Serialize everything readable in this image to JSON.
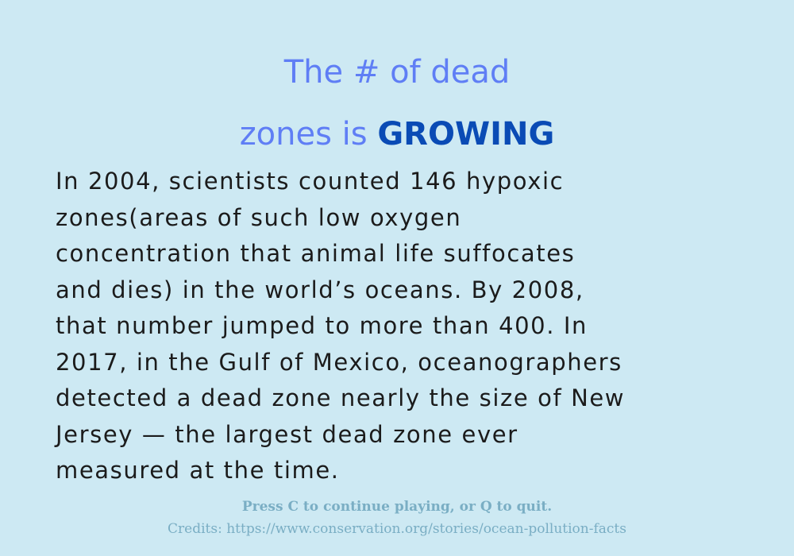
{
  "title": {
    "line1": "The # of dead",
    "line2_plain": "zones is",
    "line2_emphasis": "GROWING"
  },
  "body_lines": [
    "In 2004, scientists counted 146 hypoxic",
    "zones(areas of such low oxygen",
    "concentration that animal life suffocates",
    "and dies) in the world’s oceans. By 2008,",
    "that number jumped to more than 400. In",
    "2017, in the Gulf of Mexico, oceanographers",
    "detected a dead zone nearly the size of New",
    "Jersey — the largest dead zone ever",
    "measured at the time."
  ],
  "footer": {
    "instruction": "Press C to continue playing, or Q to quit.",
    "credits": "Credits: https://www.conservation.org/stories/ocean-pollution-facts"
  },
  "colors": {
    "background": "#cde9f3",
    "title": "#5f7ef5",
    "title_emphasis": "#0a4bb5",
    "body": "#1b1b1b",
    "footer": "#7aaec4"
  }
}
